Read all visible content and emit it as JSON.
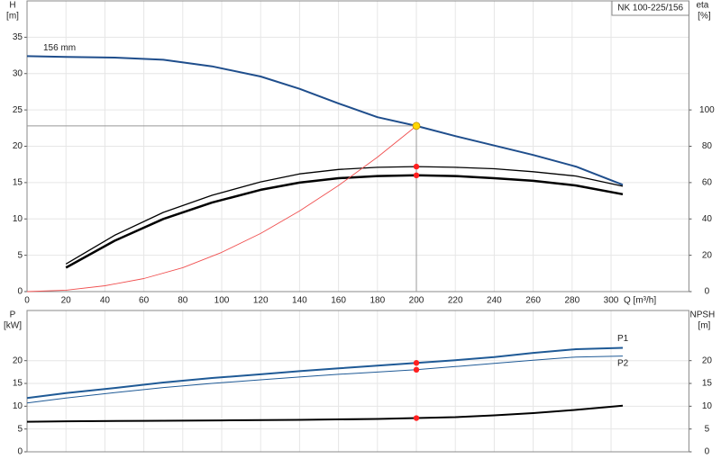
{
  "chart_data": [
    {
      "type": "line",
      "title": "NK 100-225/156",
      "ylabel": "H",
      "yunit": "[m]",
      "y2label": "eta",
      "y2unit": "[%]",
      "xlabel": "Q [m³/h]",
      "xlim": [
        0,
        340
      ],
      "xticks": [
        0,
        20,
        40,
        60,
        80,
        100,
        120,
        140,
        160,
        180,
        200,
        220,
        240,
        260,
        280,
        300
      ],
      "ylim": [
        0,
        40
      ],
      "yticks": [
        0,
        5,
        10,
        15,
        20,
        25,
        30,
        35
      ],
      "y2lim": [
        0,
        160
      ],
      "y2ticks": [
        0,
        20,
        40,
        60,
        80,
        100
      ],
      "grid": true,
      "series": [
        {
          "name": "156 mm",
          "color": "#1f4e8c",
          "line_width": 2,
          "x": [
            0,
            20,
            45,
            70,
            95,
            120,
            140,
            160,
            180,
            200,
            220,
            240,
            260,
            282,
            306
          ],
          "values": [
            32.4,
            32.3,
            32.2,
            31.9,
            31.0,
            29.6,
            27.9,
            25.9,
            24.0,
            22.8,
            21.4,
            20.1,
            18.8,
            17.2,
            14.7
          ]
        },
        {
          "color": "#000000",
          "line_width": 1.3,
          "axis": "y2",
          "x": [
            20,
            45,
            70,
            95,
            120,
            140,
            160,
            180,
            200,
            220,
            240,
            260,
            282,
            306
          ],
          "values": [
            15.2,
            31,
            43.6,
            53,
            60.4,
            64.8,
            67.2,
            68.4,
            68.8,
            68.4,
            67.6,
            66,
            63.6,
            58
          ]
        },
        {
          "color": "#000000",
          "line_width": 2.5,
          "axis": "y2",
          "x": [
            20,
            45,
            70,
            95,
            120,
            140,
            160,
            180,
            200,
            220,
            240,
            260,
            282,
            306
          ],
          "values": [
            13.2,
            28,
            40,
            49,
            56,
            60,
            62.4,
            63.6,
            64,
            63.6,
            62.4,
            61,
            58.4,
            53.6
          ]
        },
        {
          "color": "#f05050",
          "line_width": 0.9,
          "x": [
            0,
            20,
            40,
            60,
            80,
            100,
            120,
            140,
            160,
            180,
            200
          ],
          "values": [
            0,
            0.2,
            0.8,
            1.8,
            3.3,
            5.4,
            8.0,
            11.1,
            14.6,
            18.5,
            22.8
          ]
        }
      ],
      "markers": [
        {
          "x": 200,
          "y": 22.8,
          "color": "#ffd700",
          "guide_lines": true
        },
        {
          "x": 200,
          "y": 68.8,
          "color": "#ff2020",
          "axis": "y2"
        },
        {
          "x": 200,
          "y": 64,
          "color": "#ff2020",
          "axis": "y2"
        }
      ]
    },
    {
      "type": "line",
      "ylabel": "P",
      "yunit": "[kW]",
      "y2label": "NPSH",
      "y2unit": "[m]",
      "xlim": [
        0,
        340
      ],
      "ylim": [
        0,
        31
      ],
      "yticks": [
        0,
        5,
        10,
        15,
        20
      ],
      "y2lim": [
        0,
        31
      ],
      "y2ticks": [
        0,
        5,
        10,
        15,
        20
      ],
      "grid": true,
      "series": [
        {
          "name": "P1",
          "color": "#1f5a96",
          "line_width": 2,
          "x": [
            0,
            20,
            45,
            70,
            95,
            120,
            140,
            160,
            180,
            200,
            220,
            240,
            260,
            282,
            306
          ],
          "values": [
            11.8,
            12.9,
            14.0,
            15.2,
            16.2,
            17.0,
            17.7,
            18.3,
            18.9,
            19.5,
            20.1,
            20.8,
            21.7,
            22.5,
            22.8
          ]
        },
        {
          "name": "P2",
          "color": "#1f5a96",
          "line_width": 1,
          "x": [
            0,
            20,
            45,
            70,
            95,
            120,
            140,
            160,
            180,
            200,
            220,
            240,
            260,
            282,
            306
          ],
          "values": [
            10.7,
            11.8,
            13.0,
            14.1,
            15.0,
            15.8,
            16.4,
            17.0,
            17.5,
            18.0,
            18.7,
            19.4,
            20.1,
            20.8,
            21.0
          ]
        },
        {
          "color": "#000000",
          "line_width": 2,
          "axis": "y2",
          "x": [
            0,
            20,
            60,
            100,
            140,
            180,
            200,
            220,
            240,
            260,
            282,
            306
          ],
          "values": [
            6.6,
            6.7,
            6.8,
            6.9,
            7.0,
            7.2,
            7.4,
            7.6,
            8.0,
            8.5,
            9.2,
            10.1
          ]
        }
      ],
      "markers": [
        {
          "x": 200,
          "y": 19.5,
          "color": "#ff2020"
        },
        {
          "x": 200,
          "y": 18.0,
          "color": "#ff2020"
        },
        {
          "x": 200,
          "y": 7.4,
          "color": "#ff2020",
          "axis": "y2"
        }
      ]
    }
  ]
}
